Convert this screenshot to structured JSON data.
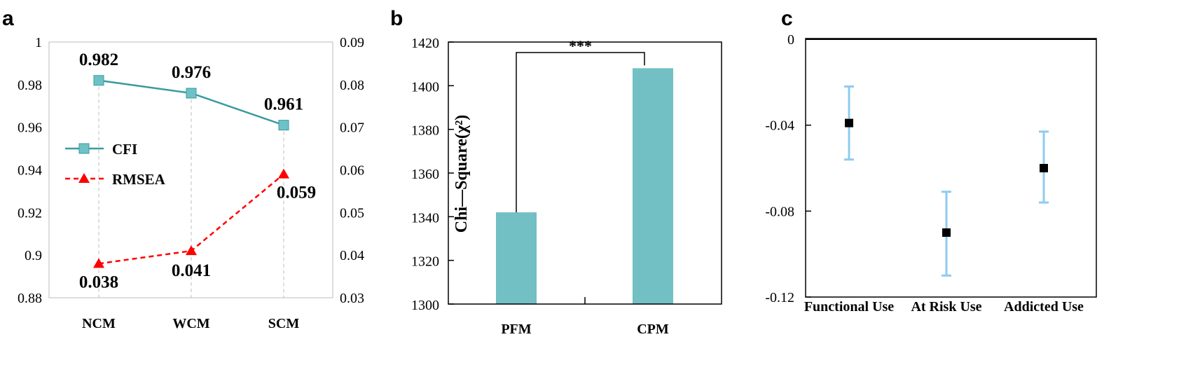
{
  "panels": {
    "a": {
      "letter": "a",
      "chart_data": {
        "type": "line",
        "categories": [
          "NCM",
          "WCM",
          "SCM"
        ],
        "series": [
          {
            "name": "CFI",
            "axis": "left",
            "values": [
              0.982,
              0.976,
              0.961
            ],
            "labels": [
              "0.982",
              "0.976",
              "0.961"
            ],
            "color": "#3a9aa0",
            "marker": "square",
            "dash": "solid"
          },
          {
            "name": "RMSEA",
            "axis": "right",
            "values": [
              0.038,
              0.041,
              0.059
            ],
            "labels": [
              "0.038",
              "0.041",
              "0.059"
            ],
            "color": "#ff0000",
            "marker": "triangle",
            "dash": "dashed"
          }
        ],
        "ylim_left": [
          0.88,
          1
        ],
        "yticks_left": [
          "0.88",
          "0.9",
          "0.92",
          "0.94",
          "0.96",
          "0.98",
          "1"
        ],
        "ylim_right": [
          0.03,
          0.09
        ],
        "yticks_right": [
          "0.03",
          "0.04",
          "0.05",
          "0.06",
          "0.07",
          "0.08",
          "0.09"
        ],
        "legend": "left-middle",
        "grid": "vertical dashed drop lines at categories"
      }
    },
    "b": {
      "letter": "b",
      "chart_data": {
        "type": "bar",
        "categories": [
          "PFM",
          "CPM"
        ],
        "values": [
          1342,
          1408
        ],
        "ylabel": "Chi—Square(χ²)",
        "ylim": [
          1300,
          1420
        ],
        "yticks": [
          "1300",
          "1320",
          "1340",
          "1360",
          "1380",
          "1400",
          "1420"
        ],
        "color": "#72bfc4",
        "annotation": "***"
      }
    },
    "c": {
      "letter": "c",
      "chart_data": {
        "type": "scatter",
        "categories": [
          "Functional Use",
          "At Risk Use",
          "Addicted Use"
        ],
        "values": [
          -0.039,
          -0.09,
          -0.06
        ],
        "error_low": [
          -0.056,
          -0.11,
          -0.076
        ],
        "error_high": [
          -0.022,
          -0.071,
          -0.043
        ],
        "ylim": [
          -0.12,
          0
        ],
        "yticks": [
          "-0.12",
          "-0.08",
          "-0.04",
          "0"
        ],
        "marker_color": "#000000",
        "error_color": "#8ecbf0"
      }
    }
  }
}
